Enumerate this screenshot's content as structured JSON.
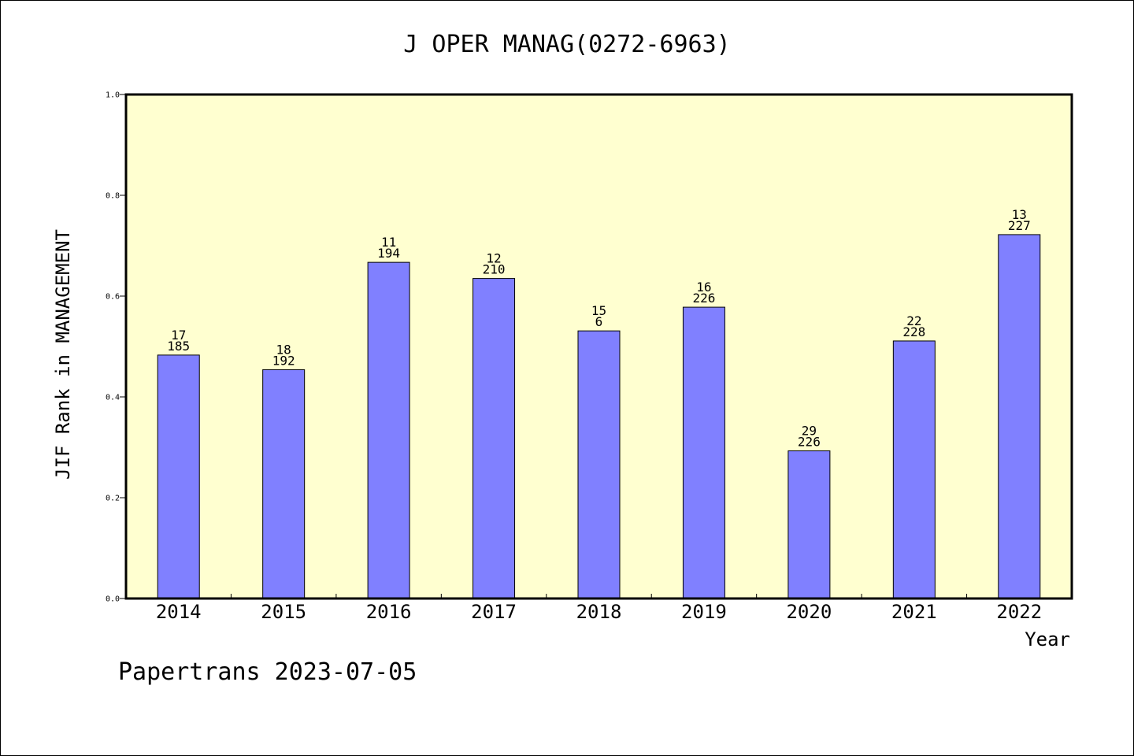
{
  "chart_data": {
    "type": "bar",
    "title": "J OPER MANAG(0272-6963)",
    "ylabel": "JIF Rank in MANAGEMENT",
    "xlabel": "Year",
    "ylim": [
      0,
      1.0
    ],
    "y_ticks": [
      "0.0",
      "0.2",
      "0.4",
      "0.6",
      "0.8",
      "1.0"
    ],
    "categories": [
      "2014",
      "2015",
      "2016",
      "2017",
      "2018",
      "2019",
      "2020",
      "2021",
      "2022"
    ],
    "values": [
      0.483,
      0.454,
      0.667,
      0.635,
      0.531,
      0.578,
      0.293,
      0.511,
      0.722
    ],
    "labels_top": [
      "17",
      "18",
      "11",
      "12",
      "15",
      "16",
      "29",
      "22",
      "13"
    ],
    "labels_bottom": [
      "185",
      "192",
      "194",
      "210",
      "6",
      "226",
      "226",
      "228",
      "227"
    ],
    "grid": false,
    "legend": "none"
  },
  "footer": "Papertrans 2023-07-05",
  "colors": {
    "plot_background": "#ffffd0",
    "bar_fill": "#8080ff",
    "bar_stroke": "#000000"
  }
}
